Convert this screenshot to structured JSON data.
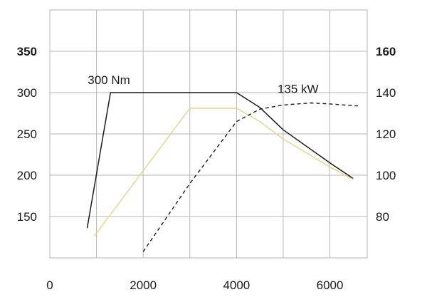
{
  "chart_data": {
    "type": "line",
    "title": "",
    "xlabel": "",
    "ylabel": "",
    "xlim": [
      0,
      6800
    ],
    "ylim_left": [
      100,
      400
    ],
    "ylim_right": [
      60,
      180
    ],
    "x_ticks": [
      0,
      2000,
      4000,
      6000
    ],
    "y_left_ticks": [
      150,
      200,
      250,
      300,
      350
    ],
    "y_right_ticks": [
      80,
      100,
      120,
      140,
      160
    ],
    "grid": true,
    "series": [
      {
        "axis": "left",
        "color": "#1a1a1a",
        "style": "solid",
        "points": [
          [
            800,
            136
          ],
          [
            1300,
            300
          ],
          [
            4000,
            300
          ],
          [
            4500,
            282
          ],
          [
            5000,
            255
          ],
          [
            6000,
            215
          ],
          [
            6500,
            196
          ]
        ]
      },
      {
        "axis": "left",
        "color": "#e0d98c",
        "style": "solid",
        "points": [
          [
            950,
            126
          ],
          [
            3000,
            281
          ],
          [
            4000,
            281
          ],
          [
            4500,
            265
          ],
          [
            5000,
            244
          ],
          [
            6000,
            210
          ],
          [
            6500,
            195
          ]
        ]
      },
      {
        "axis": "right",
        "color": "#1a1a1a",
        "style": "dashed",
        "points": [
          [
            2000,
            63
          ],
          [
            3000,
            96
          ],
          [
            4000,
            126
          ],
          [
            4500,
            132
          ],
          [
            5000,
            134
          ],
          [
            5600,
            135
          ],
          [
            6000,
            134.5
          ],
          [
            6600,
            133.5
          ]
        ]
      }
    ],
    "annotations": [
      {
        "text": "300 Nm",
        "x": 1300,
        "y": 300,
        "axis": "left"
      },
      {
        "text": "135 kW",
        "x": 5000,
        "y": 135,
        "axis": "right"
      }
    ]
  }
}
